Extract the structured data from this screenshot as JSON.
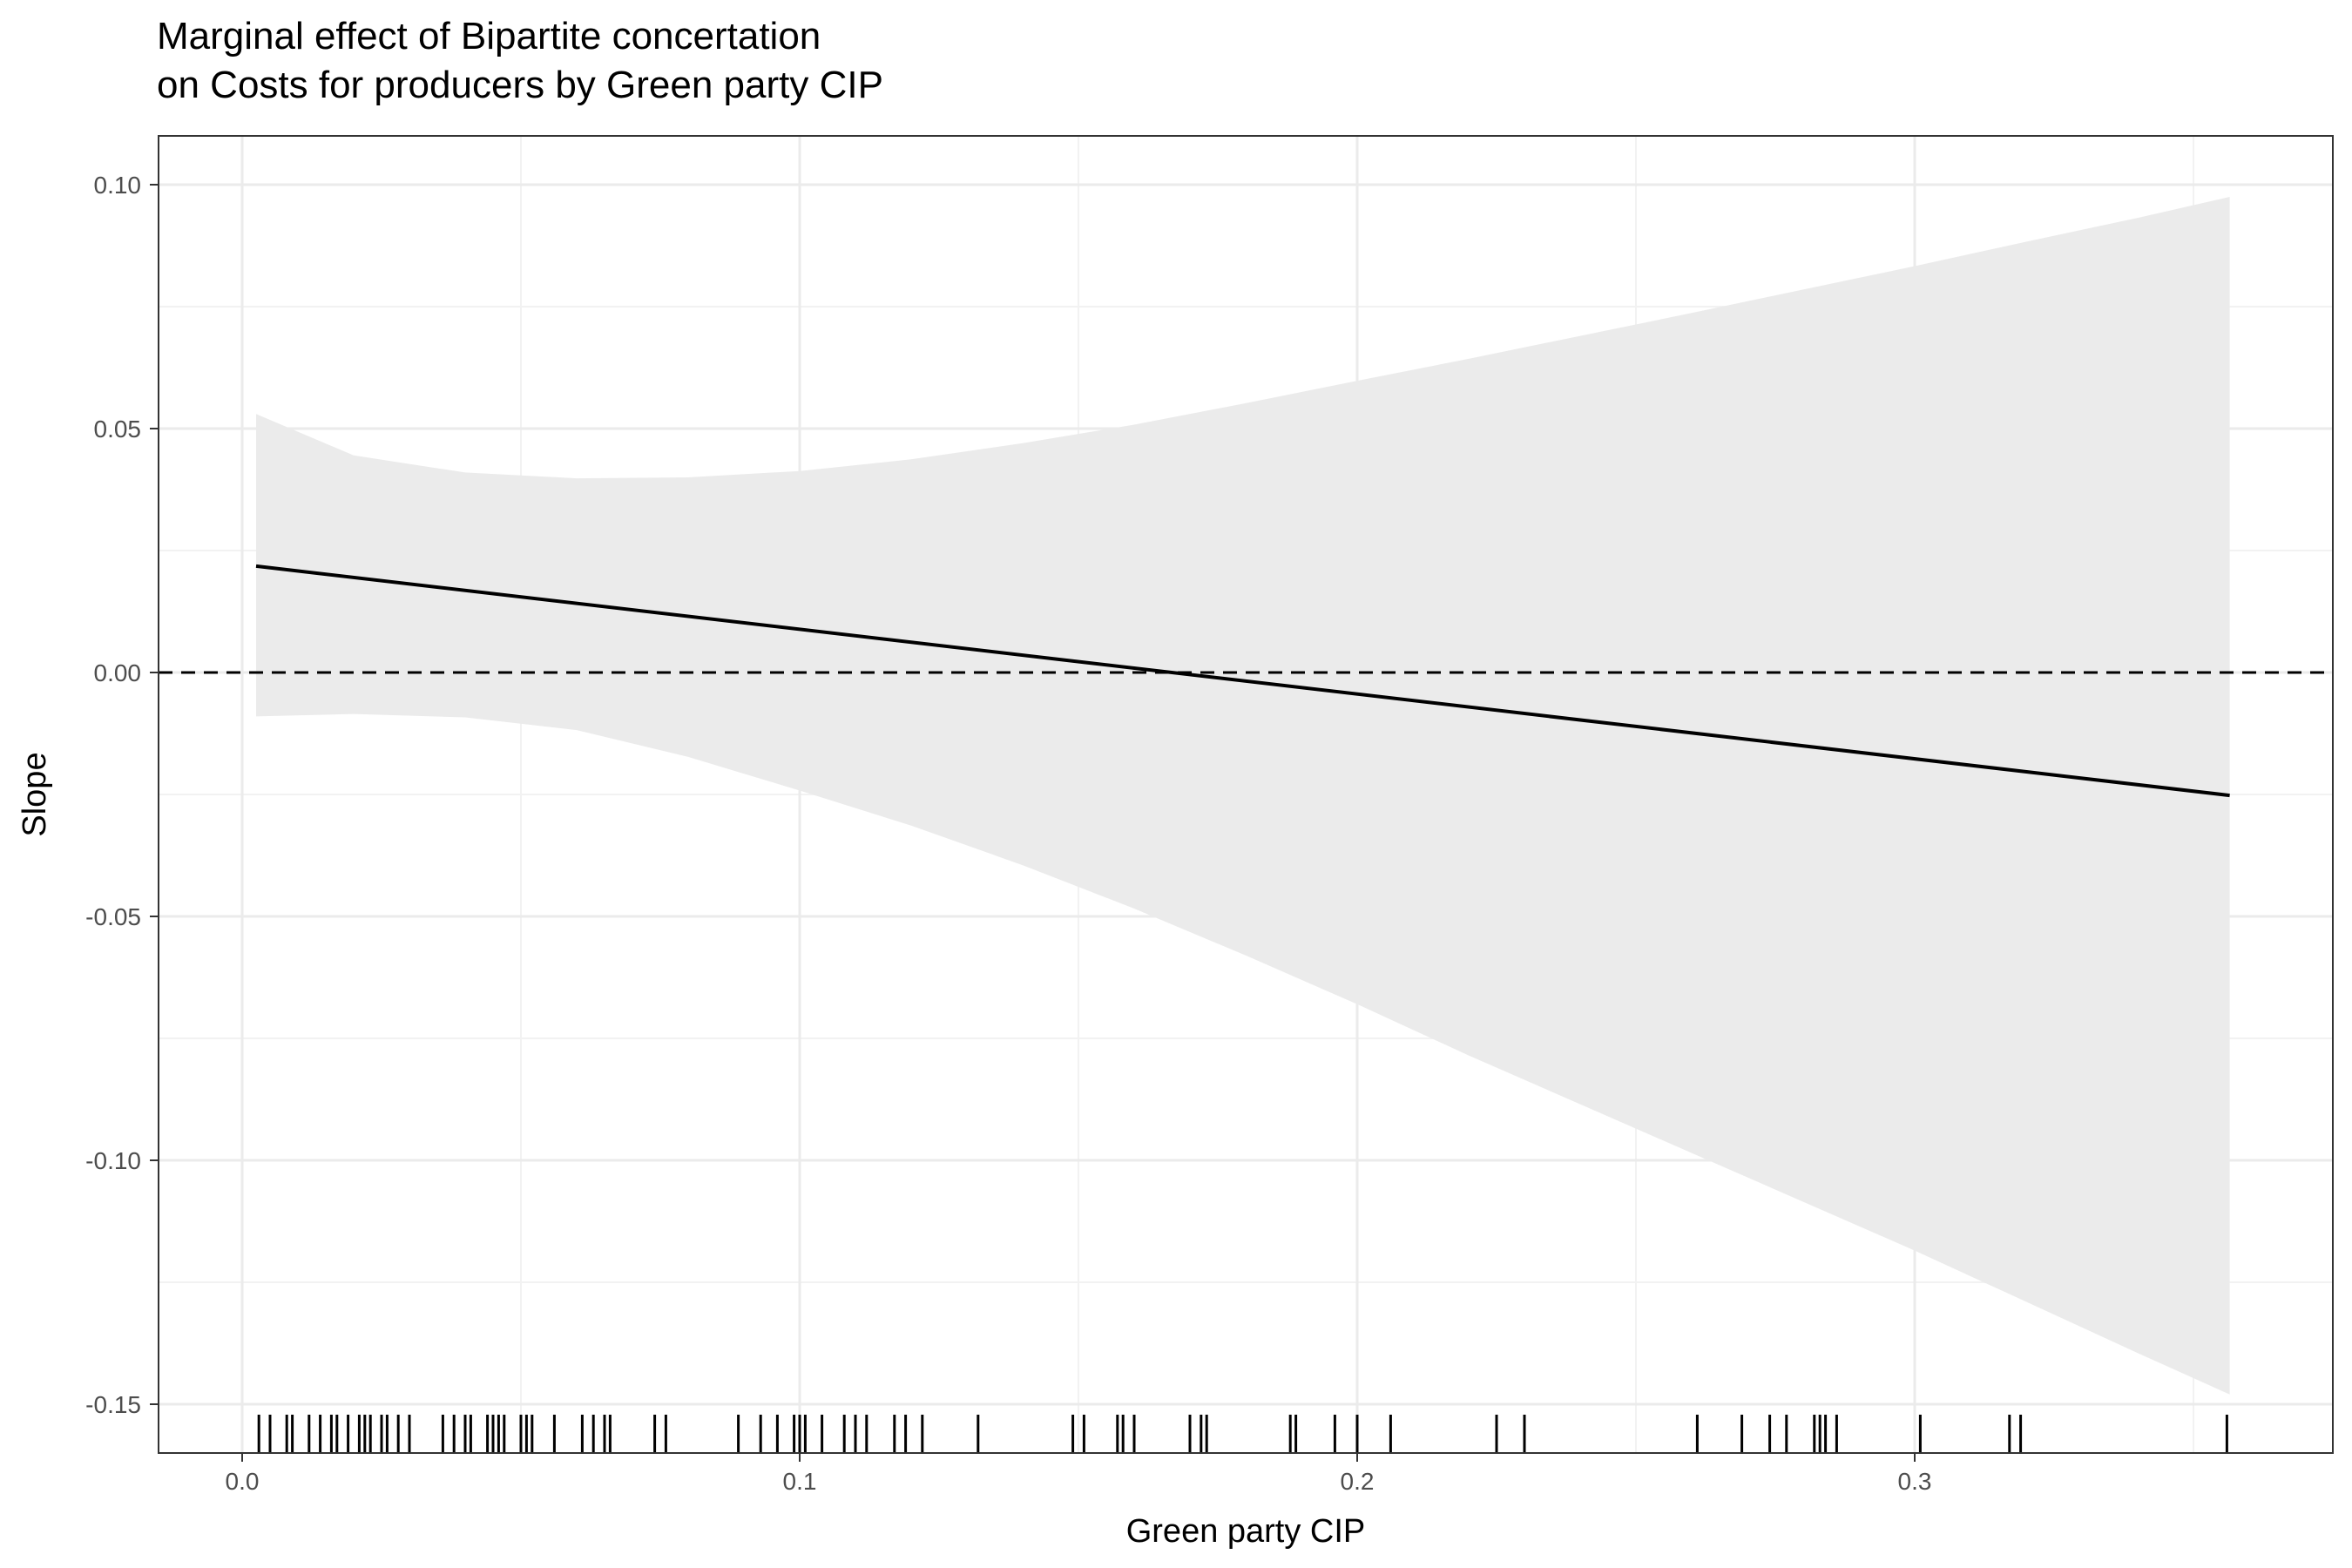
{
  "title_lines": [
    "Marginal effect of Bipartite concertation",
    "on Costs for producers by Green party CIP"
  ],
  "chart_data": {
    "type": "line",
    "title": "Marginal effect of Bipartite concertation on Costs for producers by Green party CIP",
    "xlabel": "Green party CIP",
    "ylabel": "Slope",
    "xlim": [
      -0.015,
      0.375
    ],
    "ylim": [
      -0.16,
      0.11
    ],
    "x_ticks": [
      0.0,
      0.1,
      0.2,
      0.3
    ],
    "x_tick_labels": [
      "0.0",
      "0.1",
      "0.2",
      "0.3"
    ],
    "y_ticks": [
      0.1,
      0.05,
      0.0,
      -0.05,
      -0.1,
      -0.15
    ],
    "y_tick_labels": [
      "0.10",
      "0.05",
      "0.00",
      "-0.05",
      "-0.10",
      "-0.15"
    ],
    "grid": true,
    "reference_line": {
      "y": 0.0,
      "style": "dashed"
    },
    "series": [
      {
        "x": [
          0.0025,
          0.3565
        ],
        "y": [
          0.0218,
          -0.0252
        ]
      }
    ],
    "ribbon": {
      "x": [
        0.0025,
        0.02,
        0.04,
        0.06,
        0.08,
        0.1,
        0.12,
        0.14,
        0.16,
        0.18,
        0.2,
        0.22,
        0.24,
        0.26,
        0.28,
        0.3,
        0.32,
        0.34,
        0.3565
      ],
      "upper": [
        0.053,
        0.0445,
        0.041,
        0.0398,
        0.04,
        0.0413,
        0.0437,
        0.047,
        0.0508,
        0.0552,
        0.0598,
        0.0643,
        0.069,
        0.0737,
        0.0785,
        0.0833,
        0.0883,
        0.0932,
        0.0975
      ],
      "lower": [
        -0.009,
        -0.0085,
        -0.0092,
        -0.0118,
        -0.0173,
        -0.0242,
        -0.0314,
        -0.0395,
        -0.0484,
        -0.058,
        -0.068,
        -0.0785,
        -0.0885,
        -0.0985,
        -0.1085,
        -0.1185,
        -0.129,
        -0.1395,
        -0.148
      ]
    },
    "rug": [
      0.003,
      0.005,
      0.008,
      0.009,
      0.012,
      0.014,
      0.016,
      0.017,
      0.019,
      0.021,
      0.022,
      0.023,
      0.025,
      0.026,
      0.028,
      0.03,
      0.036,
      0.038,
      0.04,
      0.041,
      0.044,
      0.045,
      0.046,
      0.047,
      0.05,
      0.051,
      0.052,
      0.056,
      0.061,
      0.063,
      0.065,
      0.066,
      0.074,
      0.076,
      0.089,
      0.093,
      0.096,
      0.099,
      0.1,
      0.101,
      0.104,
      0.108,
      0.11,
      0.112,
      0.117,
      0.119,
      0.122,
      0.132,
      0.149,
      0.151,
      0.157,
      0.158,
      0.16,
      0.17,
      0.172,
      0.173,
      0.188,
      0.189,
      0.196,
      0.2,
      0.206,
      0.225,
      0.23,
      0.261,
      0.269,
      0.274,
      0.277,
      0.282,
      0.283,
      0.284,
      0.286,
      0.301,
      0.317,
      0.319,
      0.356
    ]
  }
}
